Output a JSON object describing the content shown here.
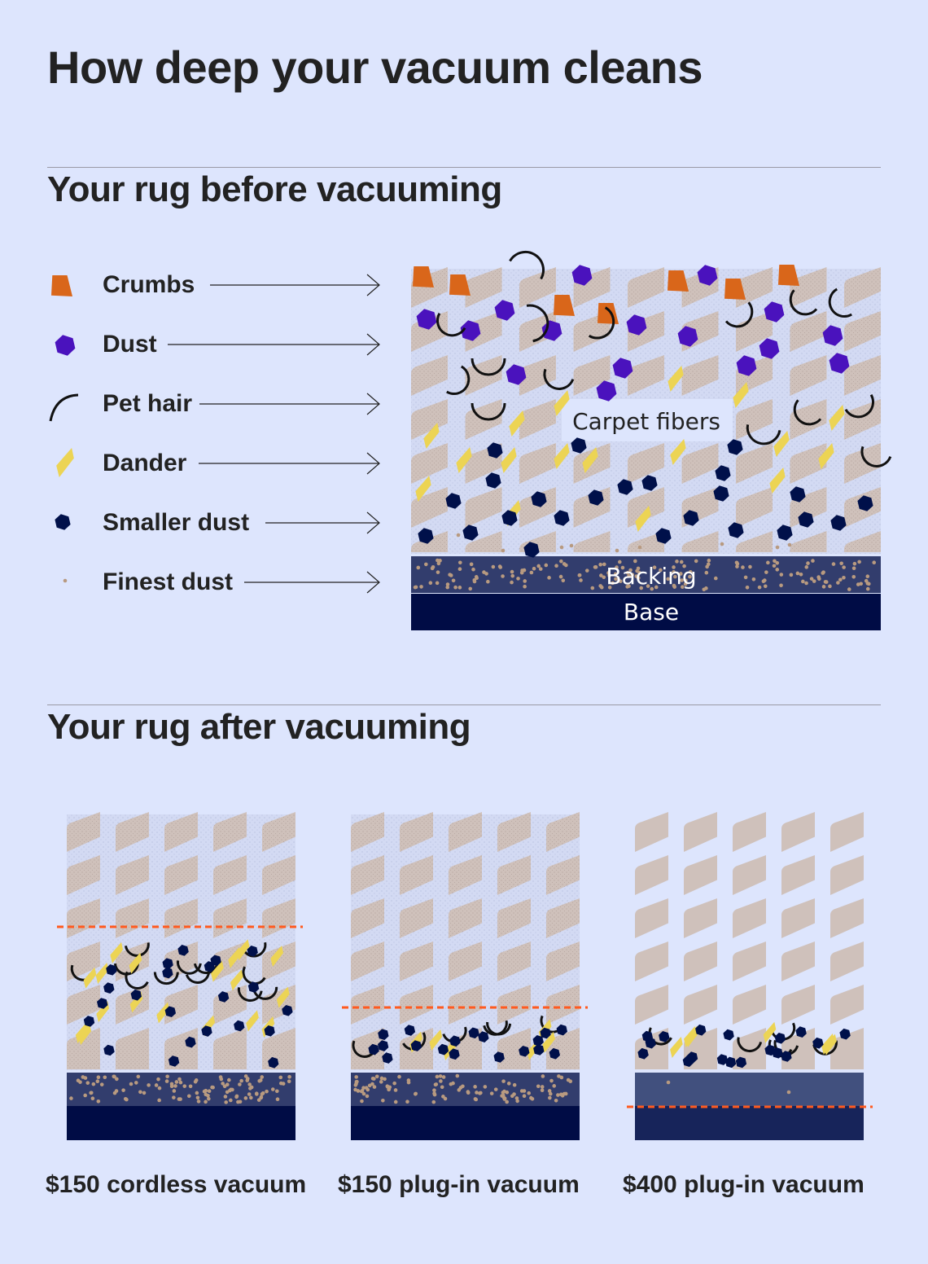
{
  "title": "How deep your vacuum cleans",
  "before": {
    "heading": "Your rug before vacuuming",
    "legend": [
      {
        "label": "Crumbs",
        "icon": "crumb-icon",
        "color": "#d9661a"
      },
      {
        "label": "Dust",
        "icon": "dust-icon",
        "color": "#4a12bd"
      },
      {
        "label": "Pet hair",
        "icon": "pet-hair-icon",
        "color": "#111111"
      },
      {
        "label": "Dander",
        "icon": "dander-icon",
        "color": "#ecd454"
      },
      {
        "label": "Smaller dust",
        "icon": "smaller-dust-icon",
        "color": "#00104a"
      },
      {
        "label": "Finest dust",
        "icon": "finest-dust-icon",
        "color": "#b89a80"
      }
    ],
    "labels": {
      "fibers": "Carpet fibers",
      "backing": "Backing",
      "base": "Base"
    }
  },
  "after": {
    "heading": "Your rug after vacuuming",
    "vacuums": [
      {
        "label": "$150 cordless vacuum"
      },
      {
        "label": "$150 plug-in vacuum"
      },
      {
        "label": "$400 plug-in vacuum"
      }
    ]
  },
  "colors": {
    "background": "#dde5fd",
    "fiber": "#cfc1bb",
    "backing": "#323d6d",
    "base": "#000c45",
    "clean_line": "#ff5a1f"
  }
}
